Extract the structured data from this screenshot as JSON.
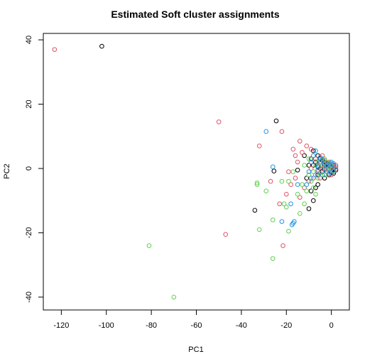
{
  "chart_data": {
    "type": "scatter",
    "title": "Estimated Soft cluster assignments",
    "xlabel": "PC1",
    "ylabel": "PC2",
    "xlim": [
      -128,
      8
    ],
    "ylim": [
      -44,
      42
    ],
    "xticks": [
      -120,
      -100,
      -80,
      -60,
      -40,
      -20,
      0
    ],
    "yticks": [
      -40,
      -20,
      0,
      20,
      40
    ],
    "grid": false,
    "legend": "none",
    "marker": "open-circle",
    "series": [
      {
        "color": "#000000",
        "points": [
          [
            -102,
            38
          ],
          [
            -24.5,
            14.8
          ],
          [
            -25.5,
            -0.8
          ],
          [
            -34,
            -13
          ],
          [
            -10,
            -12.5
          ],
          [
            -8,
            -10
          ],
          [
            -9,
            -7
          ],
          [
            -6,
            -5
          ],
          [
            -15,
            -0.5
          ],
          [
            -12,
            4
          ],
          [
            -8,
            5.5
          ],
          [
            -6,
            4
          ],
          [
            -5,
            3
          ],
          [
            -4,
            2.5
          ],
          [
            -3,
            2
          ],
          [
            -2,
            1.5
          ],
          [
            -1,
            1
          ],
          [
            0,
            0.5
          ],
          [
            1,
            0
          ],
          [
            2,
            -0.5
          ],
          [
            -7,
            2
          ],
          [
            -5,
            0
          ],
          [
            -4,
            -1
          ],
          [
            -3,
            1
          ],
          [
            -2,
            -1
          ],
          [
            -1,
            -2
          ],
          [
            0,
            -1
          ],
          [
            1,
            1
          ],
          [
            -6,
            -2
          ],
          [
            -9,
            3
          ],
          [
            -10,
            1
          ],
          [
            -11,
            -3
          ],
          [
            -7,
            -6
          ],
          [
            -3,
            -3
          ],
          [
            1,
            -1.5
          ],
          [
            -8,
            1
          ],
          [
            -6,
            0.5
          ]
        ]
      },
      {
        "color": "#df536b",
        "points": [
          [
            -123,
            37
          ],
          [
            -50,
            14.5
          ],
          [
            -32,
            7
          ],
          [
            -22,
            11.5
          ],
          [
            -47,
            -20.5
          ],
          [
            -21.5,
            -24
          ],
          [
            -23,
            -11
          ],
          [
            -14,
            -9
          ],
          [
            -18,
            -5
          ],
          [
            -16,
            -3
          ],
          [
            -19,
            -1
          ],
          [
            -15,
            2
          ],
          [
            -13,
            5
          ],
          [
            -11,
            7
          ],
          [
            -9,
            6
          ],
          [
            -7,
            3
          ],
          [
            -5,
            1.5
          ],
          [
            -4,
            0
          ],
          [
            -3,
            -0.5
          ],
          [
            -2,
            0.5
          ],
          [
            -1,
            -0.5
          ],
          [
            0,
            1.5
          ],
          [
            1,
            0.5
          ],
          [
            2,
            0
          ],
          [
            -6,
            -1
          ],
          [
            -8,
            -3
          ],
          [
            -10,
            -4
          ],
          [
            -12,
            -6
          ],
          [
            -16,
            4
          ],
          [
            -17,
            6
          ],
          [
            -14,
            8.5
          ],
          [
            -5,
            -3
          ],
          [
            -3,
            2.5
          ],
          [
            -1,
            2
          ],
          [
            0,
            -2
          ],
          [
            2,
            1
          ],
          [
            -4,
            4
          ],
          [
            -9,
            0
          ],
          [
            -27,
            -4
          ],
          [
            -20,
            -8
          ]
        ]
      },
      {
        "color": "#61d04f",
        "points": [
          [
            -81,
            -24
          ],
          [
            -70,
            -40
          ],
          [
            -33,
            -5
          ],
          [
            -33,
            -4.5
          ],
          [
            -29,
            -7
          ],
          [
            -32,
            -19
          ],
          [
            -26,
            -16
          ],
          [
            -26,
            -28
          ],
          [
            -19,
            -19.5
          ],
          [
            -20,
            -12
          ],
          [
            -21,
            -11
          ],
          [
            -19,
            -4
          ],
          [
            -22,
            -4
          ],
          [
            -14,
            -14
          ],
          [
            -12,
            -11
          ],
          [
            -11,
            -7
          ],
          [
            -13,
            -5
          ],
          [
            -10,
            -2
          ],
          [
            -9,
            -4
          ],
          [
            -8,
            -1
          ],
          [
            -7,
            1
          ],
          [
            -6,
            2
          ],
          [
            -5,
            -1.5
          ],
          [
            -4,
            1
          ],
          [
            -3,
            -2
          ],
          [
            -2,
            2
          ],
          [
            -1,
            0
          ],
          [
            0,
            0.8
          ],
          [
            1,
            -0.8
          ],
          [
            -12,
            1
          ],
          [
            -15,
            -8
          ],
          [
            -17,
            -1
          ],
          [
            -6,
            -3
          ],
          [
            -3,
            3
          ],
          [
            -2,
            -0.3
          ],
          [
            -10,
            3
          ],
          [
            -8,
            -6
          ],
          [
            -7,
            -8
          ]
        ]
      },
      {
        "color": "#2297e6",
        "points": [
          [
            -29,
            11.5
          ],
          [
            -26,
            0.5
          ],
          [
            -22,
            -16.5
          ],
          [
            -17,
            -17
          ],
          [
            -17.5,
            -17.5
          ],
          [
            -16.5,
            -16.5
          ],
          [
            -18,
            -11
          ],
          [
            -15,
            -5
          ],
          [
            -11,
            -5
          ],
          [
            -9,
            -3
          ],
          [
            -7,
            -2
          ],
          [
            -6,
            1
          ],
          [
            -5,
            2
          ],
          [
            -4,
            3
          ],
          [
            -3,
            0
          ],
          [
            -2,
            -1
          ],
          [
            -1,
            1.5
          ],
          [
            0,
            0
          ],
          [
            1,
            -1
          ],
          [
            2,
            0.5
          ],
          [
            -8,
            4
          ],
          [
            -7,
            5.5
          ],
          [
            -5,
            3.5
          ],
          [
            -3,
            1.5
          ],
          [
            -1,
            -1.5
          ],
          [
            0,
            2
          ],
          [
            1,
            1.5
          ],
          [
            -6,
            -0.5
          ],
          [
            -4,
            -2
          ],
          [
            -2,
            1
          ],
          [
            -9,
            2
          ],
          [
            -10,
            -1
          ]
        ]
      }
    ]
  }
}
